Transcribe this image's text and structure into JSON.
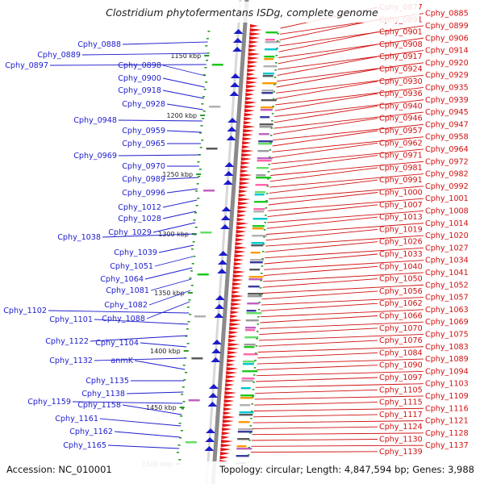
{
  "title": "Clostridium phytofermentans ISDg, complete genome",
  "footer": {
    "accession": "Accession: NC_010001",
    "summary": "Topology: circular; Length: 4,847,594 bp; Genes: 3,988"
  },
  "colors": {
    "left_label": "#1c1ccc",
    "right_label": "#d01010",
    "forward_strand": "#e01818",
    "reverse_strand": "#1c1ccc",
    "backbone": "#8a8a8a"
  },
  "ticks": [
    "1150 kbp",
    "1200 kbp",
    "1250 kbp",
    "1300 kbp",
    "1350 kbp",
    "1400 kbp",
    "1450 kbp",
    "1500 kbp"
  ],
  "left_labels": [
    "Cphy_0888",
    "Cphy_0889",
    "Cphy_0897",
    "Cphy_0898",
    "Cphy_0900",
    "Cphy_0918",
    "Cphy_0928",
    "Cphy_0948",
    "Cphy_0959",
    "Cphy_0965",
    "Cphy_0969",
    "Cphy_0970",
    "Cphy_0989",
    "Cphy_0996",
    "Cphy_1012",
    "Cphy_1028",
    "Cphy_1029",
    "Cphy_1038",
    "Cphy_1039",
    "Cphy_1051",
    "Cphy_1064",
    "Cphy_1081",
    "Cphy_1082",
    "Cphy_1088",
    "Cphy_1102",
    "Cphy_1101",
    "Cphy_1122",
    "Cphy_1104",
    "Cphy_1132",
    "anmK",
    "Cphy_1135",
    "Cphy_1138",
    "Cphy_1159",
    "Cphy_1158",
    "Cphy_1161",
    "Cphy_1162",
    "Cphy_1165"
  ],
  "right_labels": [
    "Cphy_0877",
    "Cphy_0885",
    "Cphy_0891",
    "Cphy_0899",
    "Cphy_0901",
    "Cphy_0906",
    "Cphy_0908",
    "Cphy_0914",
    "Cphy_0917",
    "Cphy_0920",
    "Cphy_0924",
    "Cphy_0929",
    "Cphy_0930",
    "Cphy_0935",
    "Cphy_0936",
    "Cphy_0939",
    "Cphy_0940",
    "Cphy_0945",
    "Cphy_0946",
    "Cphy_0947",
    "Cphy_0957",
    "Cphy_0958",
    "Cphy_0962",
    "Cphy_0964",
    "Cphy_0971",
    "Cphy_0972",
    "Cphy_0981",
    "Cphy_0982",
    "Cphy_0991",
    "Cphy_0992",
    "Cphy_1000",
    "Cphy_1001",
    "Cphy_1007",
    "Cphy_1008",
    "Cphy_1013",
    "Cphy_1014",
    "Cphy_1019",
    "Cphy_1020",
    "Cphy_1026",
    "Cphy_1027",
    "Cphy_1033",
    "Cphy_1034",
    "Cphy_1040",
    "Cphy_1041",
    "Cphy_1050",
    "Cphy_1052",
    "Cphy_1056",
    "Cphy_1057",
    "Cphy_1062",
    "Cphy_1063",
    "Cphy_1066",
    "Cphy_1069",
    "Cphy_1070",
    "Cphy_1075",
    "Cphy_1076",
    "Cphy_1083",
    "Cphy_1084",
    "Cphy_1089",
    "Cphy_1090",
    "Cphy_1094",
    "Cphy_1097",
    "Cphy_1103",
    "Cphy_1105",
    "Cphy_1109",
    "Cphy_1115",
    "Cphy_1116",
    "Cphy_1117",
    "Cphy_1121",
    "Cphy_1124",
    "Cphy_1128",
    "Cphy_1130",
    "Cphy_1137",
    "Cphy_1139"
  ]
}
